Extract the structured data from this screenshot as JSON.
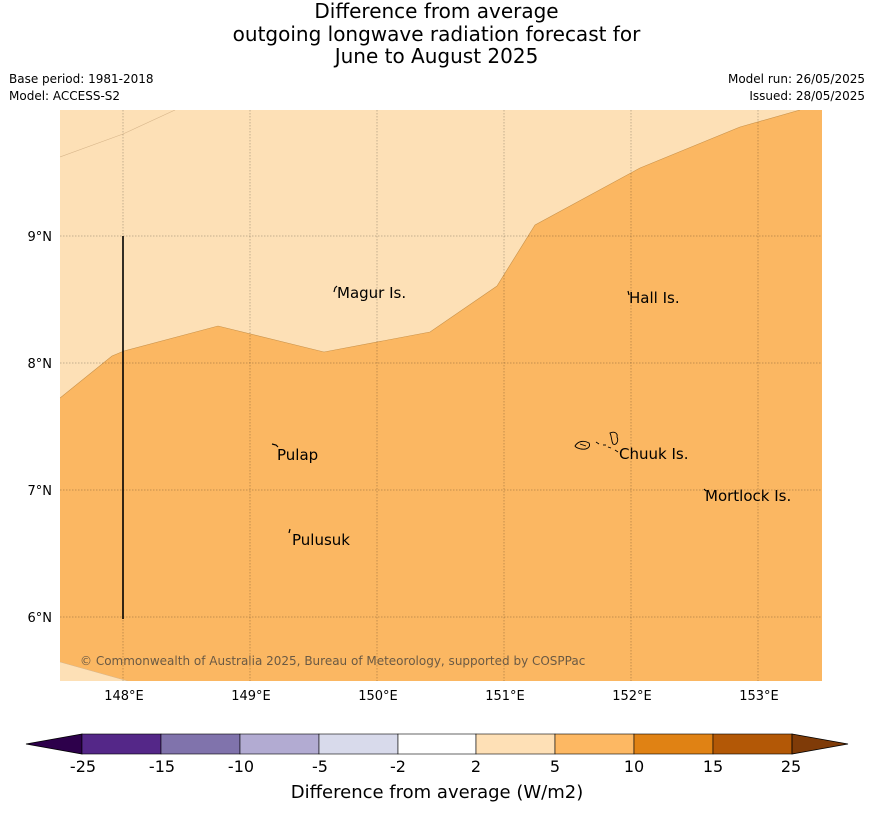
{
  "title": {
    "line1": "Difference from average",
    "line2": "outgoing longwave radiation forecast for",
    "line3": "June to August 2025"
  },
  "meta": {
    "base_period": "Base period: 1981-2018",
    "model": "Model: ACCESS-S2",
    "model_run": "Model run: 26/05/2025",
    "issued": "Issued: 28/05/2025"
  },
  "map": {
    "lon_ticks": [
      "148°E",
      "149°E",
      "150°E",
      "151°E",
      "152°E",
      "153°E"
    ],
    "lat_ticks": [
      "9°N",
      "8°N",
      "7°N",
      "6°N"
    ],
    "colors": {
      "band_2_5": "#fde0b6",
      "band_5_10": "#fbb762"
    },
    "places": [
      {
        "name": "Magur Is.",
        "symbol": "island-marker-icon"
      },
      {
        "name": "Hall Is.",
        "symbol": "island-marker-icon"
      },
      {
        "name": "Pulap",
        "symbol": "island-marker-icon"
      },
      {
        "name": "Chuuk Is.",
        "symbol": "island-cluster-icon"
      },
      {
        "name": "Mortlock Is.",
        "symbol": "island-marker-icon"
      },
      {
        "name": "Pulusuk",
        "symbol": "island-marker-icon"
      }
    ],
    "credit": "© Commonwealth of Australia 2025, Bureau of Meteorology, supported by COSPPac"
  },
  "colorbar": {
    "ticks": [
      "-25",
      "-15",
      "-10",
      "-5",
      "-2",
      "2",
      "5",
      "10",
      "15",
      "25"
    ],
    "colors": [
      "#2d004b",
      "#542788",
      "#8073ac",
      "#b2abd2",
      "#d8daeb",
      "#ffffff",
      "#fee0b6",
      "#fdb863",
      "#e08214",
      "#b35806",
      "#7f3b08"
    ],
    "label": "Difference from average (W/m2)"
  }
}
